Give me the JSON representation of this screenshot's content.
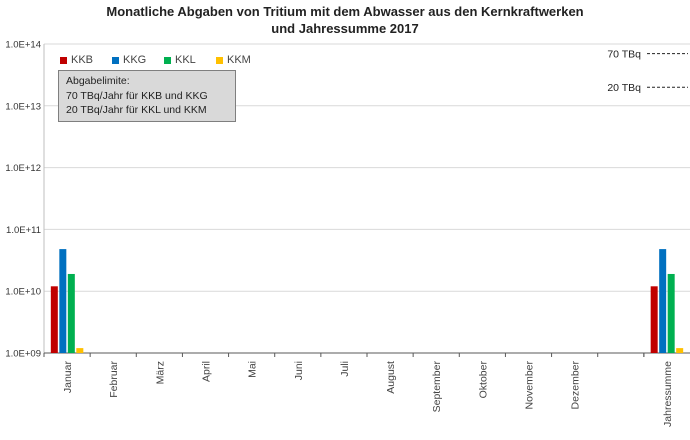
{
  "chart_data": {
    "type": "bar",
    "title": "Monatliche Abgaben von Tritium mit dem Abwasser aus den Kernkraftwerken",
    "subtitle": "und Jahressumme 2017",
    "y_scale": "log",
    "ylim": [
      1000000000.0,
      100000000000000.0
    ],
    "y_tick_labels": [
      "1.0E+09",
      "1.0E+10",
      "1.0E+11",
      "1.0E+12",
      "1.0E+13",
      "1.0E+14"
    ],
    "categories": [
      "Januar",
      "Februar",
      "März",
      "April",
      "Mai",
      "Juni",
      "Juli",
      "August",
      "September",
      "Oktober",
      "November",
      "Dezember",
      "Jahressumme"
    ],
    "series": [
      {
        "name": "KKB",
        "color": "#c00000",
        "values": [
          12000000000.0,
          null,
          null,
          null,
          null,
          null,
          null,
          null,
          null,
          null,
          null,
          null,
          12000000000.0
        ]
      },
      {
        "name": "KKG",
        "color": "#0070c0",
        "values": [
          48000000000.0,
          null,
          null,
          null,
          null,
          null,
          null,
          null,
          null,
          null,
          null,
          null,
          48000000000.0
        ]
      },
      {
        "name": "KKL",
        "color": "#00b050",
        "values": [
          19000000000.0,
          null,
          null,
          null,
          null,
          null,
          null,
          null,
          null,
          null,
          null,
          null,
          19000000000.0
        ]
      },
      {
        "name": "KKM",
        "color": "#ffc000",
        "values": [
          1200000000.0,
          null,
          null,
          null,
          null,
          null,
          null,
          null,
          null,
          null,
          null,
          null,
          1200000000.0
        ]
      }
    ],
    "reference_lines": [
      {
        "label": "70 TBq",
        "value": 70000000000000.0
      },
      {
        "label": "20 TBq",
        "value": 20000000000000.0
      }
    ],
    "annotation": {
      "lines": [
        "Abgabelimite:",
        "70 TBq/Jahr für KKB und KKG",
        "20 TBq/Jahr für KKL und KKM"
      ]
    },
    "legend_position": "top-left",
    "grid": true
  }
}
